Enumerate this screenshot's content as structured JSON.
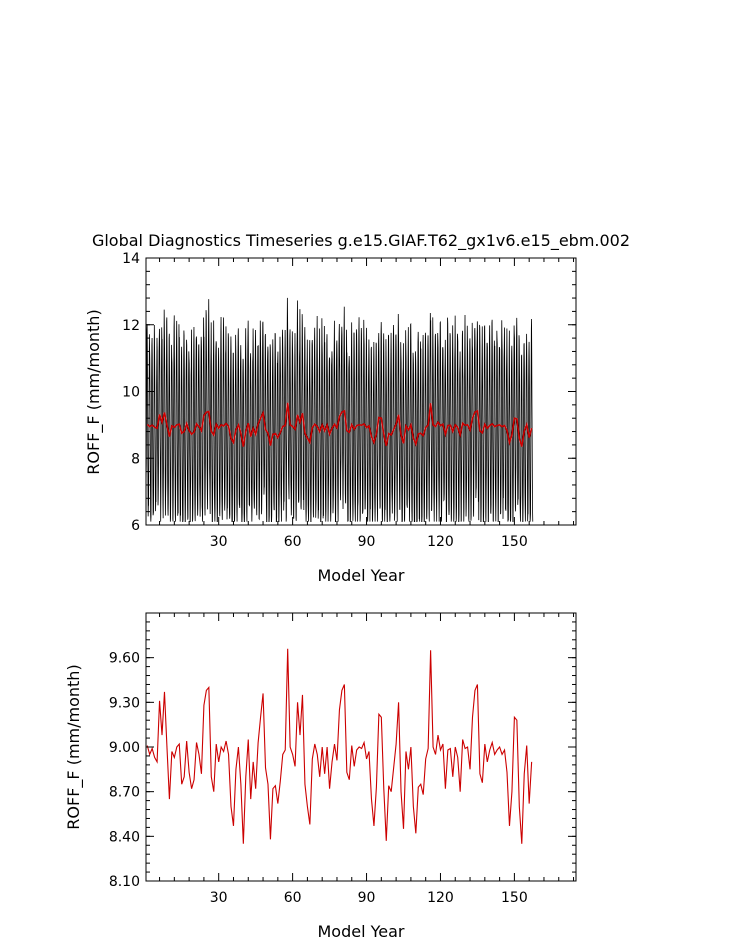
{
  "chart_data": [
    {
      "type": "line",
      "title": "Global Diagnostics Timeseries g.e15.GIAF.T62_gx1v6.e15_ebm.002",
      "xlabel": "Model Year",
      "ylabel": "ROFF_F (mm/month)",
      "xlim": [
        0.5,
        175
      ],
      "ylim": [
        6,
        14
      ],
      "xticks": [
        30,
        60,
        90,
        120,
        150
      ],
      "yticks": [
        6,
        8,
        10,
        12,
        14
      ],
      "ytick_labels": [
        "6",
        "8",
        "10",
        "12",
        "14"
      ],
      "series": [
        {
          "kind": "monthly",
          "color": "#000000",
          "annual_cycle": {
            "min": 6.6,
            "max": 12.2
          }
        },
        {
          "kind": "annual_mean",
          "color": "#cc0000"
        }
      ]
    },
    {
      "type": "line",
      "title": "",
      "xlabel": "Model Year",
      "ylabel": "ROFF_F (mm/month)",
      "xlim": [
        0.5,
        175
      ],
      "ylim": [
        8.1,
        9.9
      ],
      "xticks": [
        30,
        60,
        90,
        120,
        150
      ],
      "yticks": [
        8.1,
        8.4,
        8.7,
        9.0,
        9.3,
        9.6
      ],
      "ytick_labels": [
        "8.10",
        "8.40",
        "8.70",
        "9.00",
        "9.30",
        "9.60"
      ],
      "series": [
        {
          "kind": "annual_mean",
          "color": "#cc0000",
          "x_start": 1,
          "values": [
            9.01,
            8.95,
            8.99,
            8.93,
            8.9,
            9.31,
            9.08,
            9.37,
            9.0,
            8.65,
            8.97,
            8.93,
            9.0,
            9.02,
            8.75,
            8.8,
            9.04,
            8.83,
            8.72,
            8.78,
            9.03,
            8.95,
            8.82,
            9.28,
            9.38,
            9.4,
            8.8,
            8.7,
            9.02,
            8.9,
            9.0,
            8.97,
            9.04,
            8.95,
            8.6,
            8.47,
            8.85,
            9.0,
            8.75,
            8.35,
            8.8,
            9.05,
            8.65,
            8.9,
            8.72,
            9.03,
            9.2,
            9.36,
            8.86,
            8.75,
            8.38,
            8.72,
            8.74,
            8.62,
            8.77,
            8.95,
            8.98,
            9.66,
            9.0,
            8.95,
            8.87,
            9.3,
            9.08,
            9.35,
            8.75,
            8.6,
            8.48,
            8.92,
            9.02,
            8.95,
            8.8,
            9.0,
            8.82,
            9.0,
            8.72,
            8.9,
            9.02,
            8.91,
            9.25,
            9.38,
            9.42,
            8.83,
            8.78,
            9.01,
            8.87,
            8.98,
            9.0,
            8.99,
            9.03,
            8.92,
            8.97,
            8.65,
            8.47,
            8.73,
            9.22,
            9.2,
            8.72,
            8.37,
            8.74,
            8.7,
            8.86,
            9.02,
            9.3,
            8.7,
            8.45,
            8.97,
            8.85,
            9.0,
            8.6,
            8.42,
            8.73,
            8.75,
            8.68,
            8.92,
            8.99,
            9.65,
            9.0,
            8.95,
            9.08,
            8.98,
            9.02,
            8.72,
            8.98,
            8.99,
            8.8,
            9.0,
            8.93,
            8.7,
            9.05,
            8.99,
            9.0,
            8.85,
            9.2,
            9.38,
            9.42,
            8.82,
            8.76,
            9.02,
            8.9,
            8.98,
            9.03,
            8.95,
            8.98,
            9.0,
            8.95,
            8.98,
            8.83,
            8.47,
            8.7,
            9.2,
            9.18,
            8.6,
            8.35,
            8.82,
            9.01,
            8.62,
            8.9
          ]
        }
      ]
    }
  ]
}
